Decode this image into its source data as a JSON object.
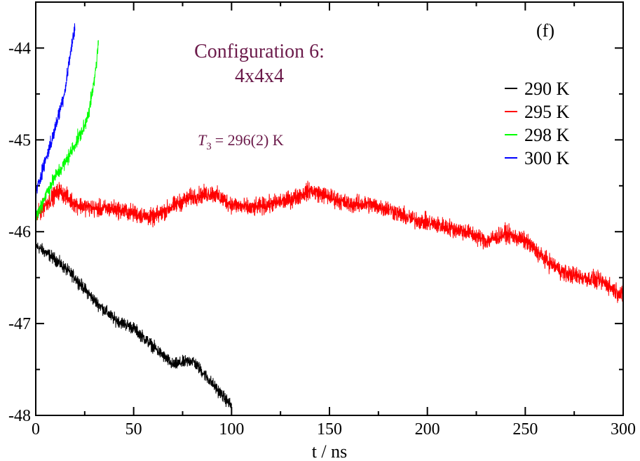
{
  "chart_data": {
    "type": "line",
    "title": "",
    "panel_label": "(f)",
    "annotation_title_line1": "Configuration 6:",
    "annotation_title_line2": "4x4x4",
    "annotation_t3_symbol": "T",
    "annotation_t3_subscript": "3",
    "annotation_t3_value": "= 296(2) K",
    "xlabel": "t / ns",
    "ylabel": "",
    "xlim": [
      0,
      300
    ],
    "ylim": [
      -48,
      -43.5
    ],
    "x_ticks": [
      0,
      50,
      100,
      150,
      200,
      250,
      300
    ],
    "x_tick_labels": [
      "0",
      "50",
      "100",
      "150",
      "200",
      "250",
      "300"
    ],
    "y_ticks": [
      -48,
      -47,
      -46,
      -45,
      -44
    ],
    "y_tick_labels": [
      "-48",
      "-47",
      "-46",
      "-45",
      "-44"
    ],
    "legend_position": "top-right",
    "series": [
      {
        "name": "290 K",
        "color": "#000000",
        "noise": 0.05,
        "points": [
          [
            0,
            -46.15
          ],
          [
            10,
            -46.3
          ],
          [
            20,
            -46.5
          ],
          [
            30,
            -46.75
          ],
          [
            40,
            -46.95
          ],
          [
            50,
            -47.05
          ],
          [
            60,
            -47.25
          ],
          [
            70,
            -47.45
          ],
          [
            80,
            -47.4
          ],
          [
            90,
            -47.65
          ],
          [
            100,
            -47.9
          ]
        ]
      },
      {
        "name": "295 K",
        "color": "#ff0000",
        "noise": 0.07,
        "points": [
          [
            0,
            -45.85
          ],
          [
            5,
            -45.7
          ],
          [
            12,
            -45.55
          ],
          [
            20,
            -45.7
          ],
          [
            30,
            -45.75
          ],
          [
            40,
            -45.75
          ],
          [
            50,
            -45.8
          ],
          [
            60,
            -45.85
          ],
          [
            70,
            -45.72
          ],
          [
            80,
            -45.62
          ],
          [
            90,
            -45.58
          ],
          [
            100,
            -45.7
          ],
          [
            110,
            -45.75
          ],
          [
            120,
            -45.7
          ],
          [
            130,
            -45.65
          ],
          [
            140,
            -45.55
          ],
          [
            150,
            -45.62
          ],
          [
            160,
            -45.7
          ],
          [
            170,
            -45.7
          ],
          [
            180,
            -45.75
          ],
          [
            190,
            -45.85
          ],
          [
            200,
            -45.9
          ],
          [
            210,
            -45.95
          ],
          [
            220,
            -46.0
          ],
          [
            230,
            -46.1
          ],
          [
            240,
            -46.02
          ],
          [
            250,
            -46.1
          ],
          [
            260,
            -46.3
          ],
          [
            270,
            -46.45
          ],
          [
            280,
            -46.5
          ],
          [
            290,
            -46.55
          ],
          [
            300,
            -46.7
          ]
        ]
      },
      {
        "name": "298 K",
        "color": "#00ff00",
        "noise": 0.06,
        "points": [
          [
            0,
            -45.85
          ],
          [
            5,
            -45.6
          ],
          [
            10,
            -45.4
          ],
          [
            15,
            -45.25
          ],
          [
            20,
            -45.05
          ],
          [
            25,
            -44.85
          ],
          [
            28,
            -44.6
          ],
          [
            30,
            -44.35
          ],
          [
            32,
            -43.95
          ]
        ]
      },
      {
        "name": "300 K",
        "color": "#0000ff",
        "noise": 0.06,
        "points": [
          [
            0,
            -45.6
          ],
          [
            3,
            -45.35
          ],
          [
            6,
            -45.15
          ],
          [
            9,
            -44.95
          ],
          [
            12,
            -44.7
          ],
          [
            15,
            -44.45
          ],
          [
            17,
            -44.15
          ],
          [
            19,
            -43.9
          ],
          [
            20,
            -43.75
          ]
        ]
      }
    ]
  }
}
